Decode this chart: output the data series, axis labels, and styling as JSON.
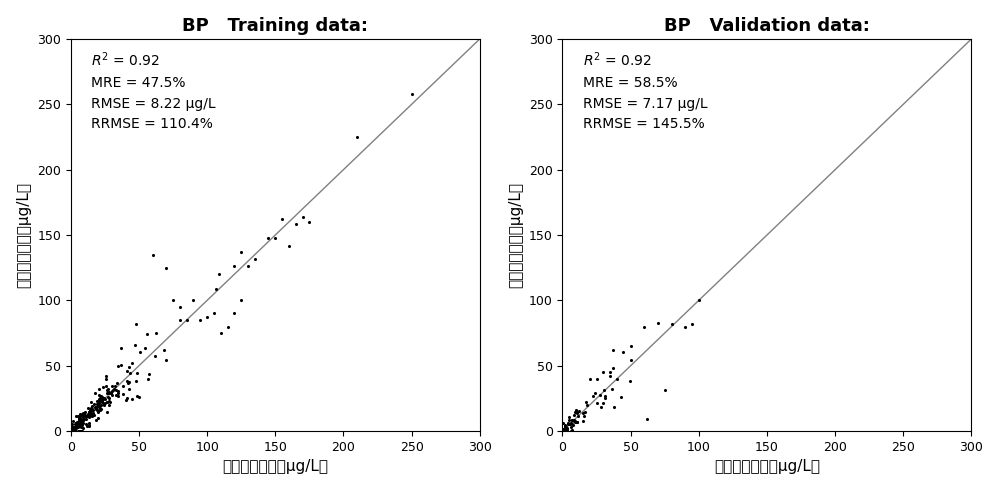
{
  "title_left": "BP   Training data:",
  "title_right": "BP   Validation data:",
  "xlabel": "叶绿素实测値（μg/L）",
  "ylabel": "叶绿素预测値（μg/L）",
  "xlim": [
    0,
    300
  ],
  "ylim": [
    0,
    300
  ],
  "xticks": [
    0,
    50,
    100,
    150,
    200,
    250,
    300
  ],
  "yticks": [
    0,
    50,
    100,
    150,
    200,
    250,
    300
  ],
  "line_color": "#808080",
  "dot_color": "#000000",
  "dot_size": 5,
  "background_color": "#ffffff",
  "stats_left": {
    "R2": "0.92",
    "MRE": "47.5%",
    "RMSE": "8.22 μg/L",
    "RRMSE": "110.4%"
  },
  "stats_right": {
    "R2": "0.92",
    "MRE": "58.5%",
    "RMSE": "7.17 μg/L",
    "RRMSE": "145.5%"
  },
  "font_size_title": 13,
  "font_size_label": 11,
  "font_size_tick": 9,
  "font_size_stats": 10
}
